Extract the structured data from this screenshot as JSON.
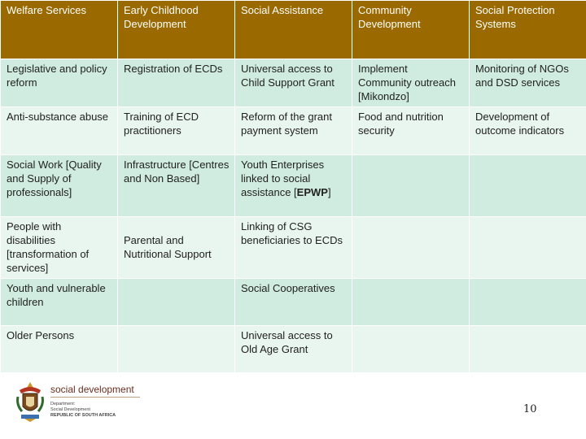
{
  "headers": [
    "Welfare Services",
    "Early Childhood Development",
    "Social Assistance",
    "Community Development",
    "Social Protection Systems"
  ],
  "rows": [
    [
      "Legislative and policy reform",
      "Registration of ECDs",
      "Universal access to Child Support Grant",
      "Implement Community outreach [Mikondzo]",
      "Monitoring of NGOs and DSD services"
    ],
    [
      "Anti-substance abuse",
      "Training of ECD practitioners",
      "Reform of the grant payment system",
      "Food and nutrition security",
      "Development of outcome indicators"
    ],
    [
      "Social Work [Quality and Supply of professionals]",
      "Infrastructure [Centres and Non Based]",
      "Youth Enterprises linked to social assistance [",
      "",
      ""
    ],
    [
      "People with disabilities [transformation of services]",
      "Parental and Nutritional Support",
      "Linking of CSG beneficiaries to ECDs",
      "",
      ""
    ],
    [
      "Youth and vulnerable children",
      "",
      "Social Cooperatives",
      "",
      ""
    ],
    [
      "Older Persons",
      "",
      "Universal access to Old Age Grant",
      "",
      ""
    ]
  ],
  "row3_col3_bold": "EPWP",
  "row3_col3_tail": "]",
  "footer": {
    "logo_name": "social development",
    "logo_lines": [
      "Department:",
      "Social Development",
      "REPUBLIC OF SOUTH AFRICA"
    ],
    "page_number": "10"
  },
  "colors": {
    "header_bg": "#9a6a00",
    "row_odd": "#d0ebe0",
    "row_even": "#e9f5ef"
  }
}
